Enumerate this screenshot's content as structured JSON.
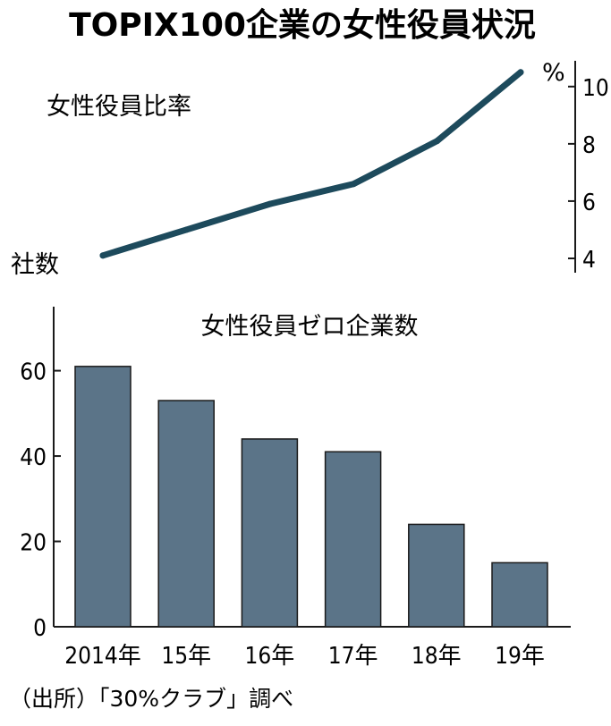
{
  "title": "TOPIX100企業の女性役員状況",
  "source": "（出所）「30%クラブ」調べ",
  "colors": {
    "line": "#1d4a5c",
    "bar": "#5b7488",
    "bar_stroke": "#1a1a1a",
    "axis": "#1a1a1a"
  },
  "chart_data": [
    {
      "type": "line",
      "title": "女性役員比率",
      "unit": "%",
      "x": [
        "2014",
        "15",
        "16",
        "17",
        "18",
        "19"
      ],
      "values": [
        4.1,
        5.0,
        5.9,
        6.6,
        8.1,
        10.5
      ],
      "ylim": [
        3.5,
        10.9
      ],
      "yticks": [
        4,
        6,
        8,
        10
      ],
      "axis_position": "right"
    },
    {
      "type": "bar",
      "title": "女性役員ゼロ企業数",
      "unit": "社数",
      "categories": [
        "2014年",
        "15年",
        "16年",
        "17年",
        "18年",
        "19年"
      ],
      "values": [
        61,
        53,
        44,
        41,
        24,
        15
      ],
      "ylim": [
        0,
        75
      ],
      "yticks": [
        0,
        20,
        40,
        60
      ],
      "axis_position": "left"
    }
  ]
}
